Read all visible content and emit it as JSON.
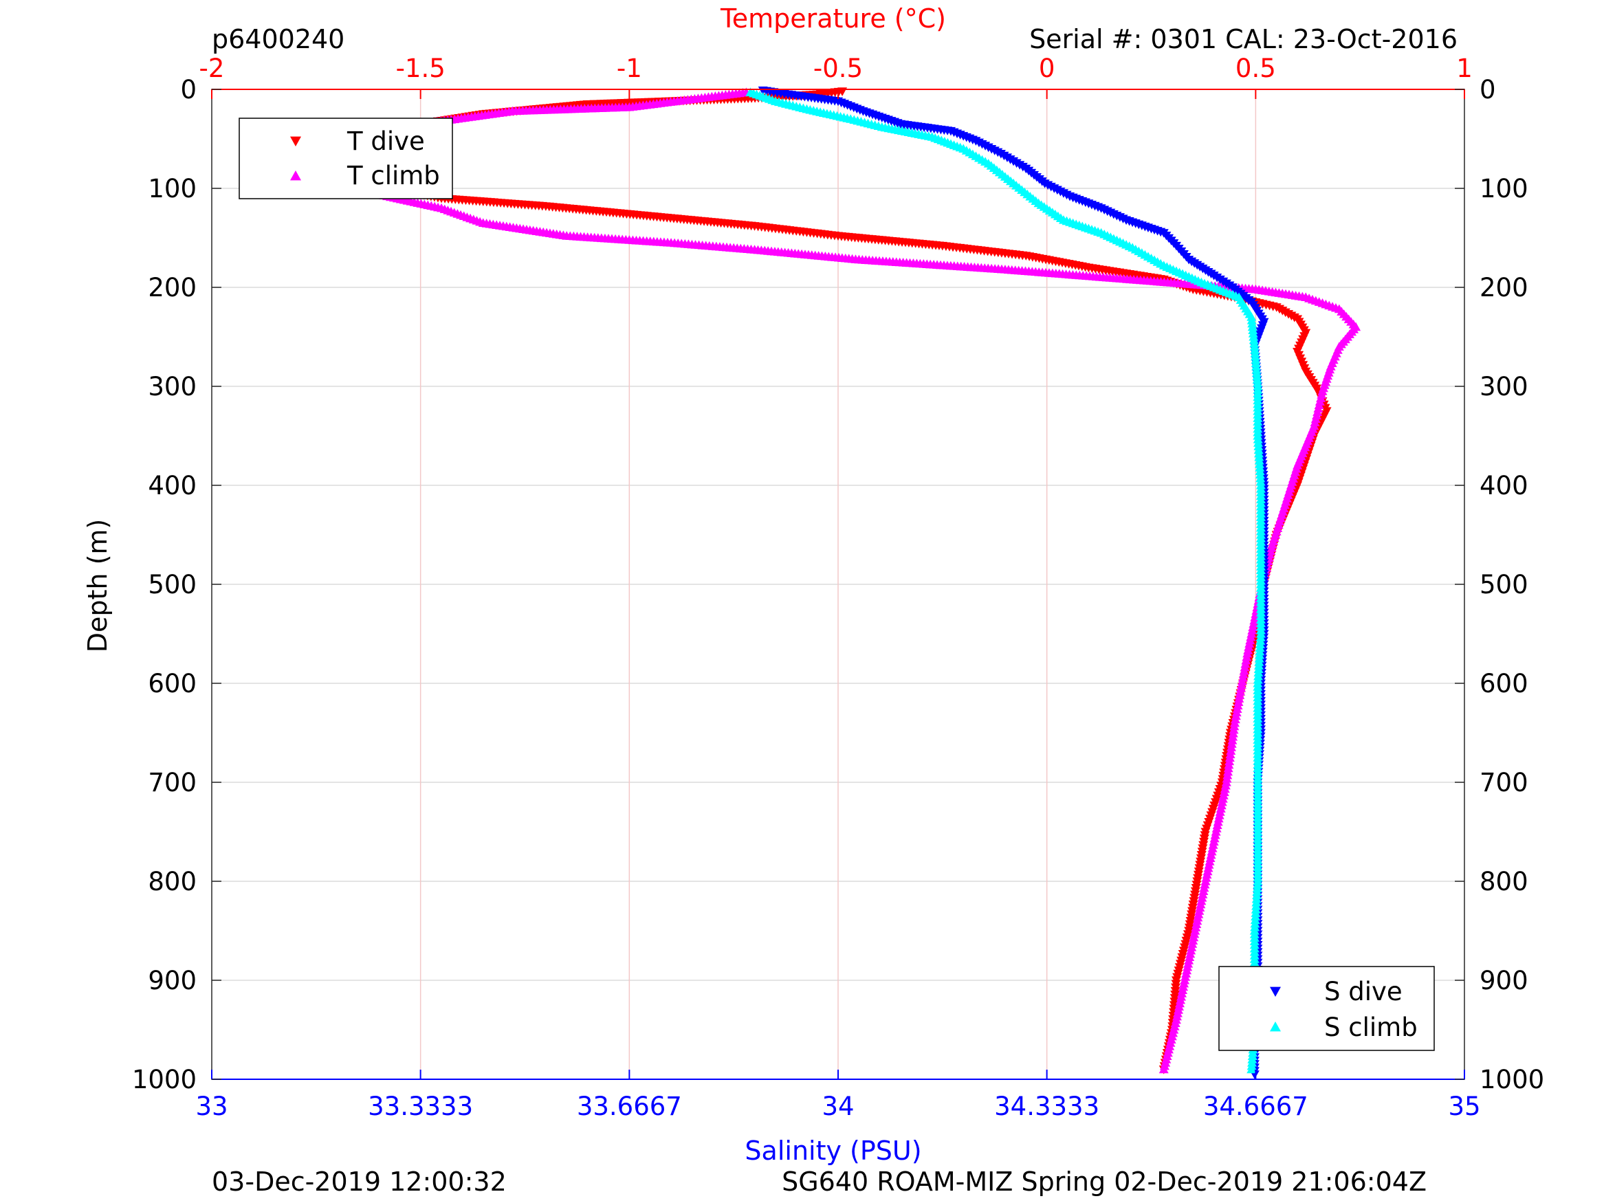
{
  "header": {
    "profile_id": "p6400240",
    "serial": "Serial #: 0301  CAL: 23-Oct-2016"
  },
  "footer": {
    "left": "03-Dec-2019 12:00:32",
    "right": "SG640 ROAM-MIZ Spring 02-Dec-2019 21:06:04Z"
  },
  "colors": {
    "t_dive": "#ff0000",
    "t_climb": "#ff00ff",
    "s_dive": "#0000ff",
    "s_climb": "#00ffff",
    "temperature_axis": "#ff0000",
    "salinity_axis": "#0000ff"
  },
  "chart_data": {
    "type": "scatter",
    "temperature_axis": {
      "label": "Temperature (°C)",
      "position": "top",
      "range": [
        -2,
        1
      ],
      "ticks": [
        -2,
        -1.5,
        -1,
        -0.5,
        0,
        0.5,
        1
      ],
      "tick_labels": [
        "-2",
        "-1.5",
        "-1",
        "-0.5",
        "0",
        "0.5",
        "1"
      ]
    },
    "salinity_axis": {
      "label": "Salinity (PSU)",
      "position": "bottom",
      "range": [
        33,
        35
      ],
      "ticks": [
        33,
        33.3333,
        33.6667,
        34,
        34.3333,
        34.6667,
        35
      ],
      "tick_labels": [
        "33",
        "33.3333",
        "33.6667",
        "34",
        "34.3333",
        "34.6667",
        "35"
      ]
    },
    "depth_axis": {
      "label": "Depth (m)",
      "range": [
        0,
        1000
      ],
      "reversed": true,
      "ticks": [
        0,
        100,
        200,
        300,
        400,
        500,
        600,
        700,
        800,
        900,
        1000
      ],
      "tick_labels": [
        "0",
        "100",
        "200",
        "300",
        "400",
        "500",
        "600",
        "700",
        "800",
        "900",
        "1000"
      ]
    },
    "grid": true,
    "legends": [
      {
        "placement": "top-left",
        "entries": [
          "T dive",
          "T climb"
        ]
      },
      {
        "placement": "bottom-right",
        "entries": [
          "S dive",
          "S climb"
        ]
      }
    ],
    "series": [
      {
        "name": "T dive",
        "axis": "temperature",
        "marker": "triangle-down",
        "points": [
          [
            -0.49,
            2
          ],
          [
            -0.55,
            5
          ],
          [
            -0.65,
            8
          ],
          [
            -1.1,
            15
          ],
          [
            -1.35,
            25
          ],
          [
            -1.5,
            35
          ],
          [
            -1.62,
            48
          ],
          [
            -1.68,
            60
          ],
          [
            -1.7,
            75
          ],
          [
            -1.62,
            90
          ],
          [
            -1.55,
            102
          ],
          [
            -1.45,
            110
          ],
          [
            -1.2,
            118
          ],
          [
            -0.95,
            128
          ],
          [
            -0.7,
            138
          ],
          [
            -0.5,
            148
          ],
          [
            -0.25,
            158
          ],
          [
            -0.05,
            168
          ],
          [
            0.1,
            180
          ],
          [
            0.28,
            192
          ],
          [
            0.35,
            202
          ],
          [
            0.45,
            210
          ],
          [
            0.55,
            220
          ],
          [
            0.6,
            232
          ],
          [
            0.62,
            246
          ],
          [
            0.6,
            265
          ],
          [
            0.62,
            285
          ],
          [
            0.65,
            305
          ],
          [
            0.67,
            325
          ],
          [
            0.64,
            350
          ],
          [
            0.6,
            400
          ],
          [
            0.55,
            450
          ],
          [
            0.52,
            500
          ],
          [
            0.5,
            550
          ],
          [
            0.47,
            600
          ],
          [
            0.44,
            650
          ],
          [
            0.42,
            700
          ],
          [
            0.38,
            750
          ],
          [
            0.36,
            800
          ],
          [
            0.34,
            850
          ],
          [
            0.31,
            900
          ],
          [
            0.3,
            950
          ],
          [
            0.28,
            990
          ]
        ]
      },
      {
        "name": "T climb",
        "axis": "temperature",
        "marker": "triangle-up",
        "points": [
          [
            -0.72,
            3
          ],
          [
            -1.0,
            18
          ],
          [
            -1.28,
            22
          ],
          [
            -1.5,
            35
          ],
          [
            -1.7,
            50
          ],
          [
            -1.78,
            65
          ],
          [
            -1.8,
            80
          ],
          [
            -1.72,
            92
          ],
          [
            -1.58,
            108
          ],
          [
            -1.45,
            120
          ],
          [
            -1.35,
            135
          ],
          [
            -1.15,
            148
          ],
          [
            -0.9,
            155
          ],
          [
            -0.7,
            162
          ],
          [
            -0.45,
            172
          ],
          [
            -0.1,
            182
          ],
          [
            0.2,
            192
          ],
          [
            0.5,
            202
          ],
          [
            0.62,
            210
          ],
          [
            0.7,
            222
          ],
          [
            0.74,
            240
          ],
          [
            0.7,
            260
          ],
          [
            0.68,
            280
          ],
          [
            0.66,
            305
          ],
          [
            0.64,
            340
          ],
          [
            0.6,
            380
          ],
          [
            0.57,
            420
          ],
          [
            0.54,
            460
          ],
          [
            0.51,
            510
          ],
          [
            0.48,
            570
          ],
          [
            0.45,
            640
          ],
          [
            0.43,
            700
          ],
          [
            0.4,
            760
          ],
          [
            0.37,
            820
          ],
          [
            0.34,
            880
          ],
          [
            0.31,
            940
          ],
          [
            0.28,
            990
          ]
        ]
      },
      {
        "name": "S dive",
        "axis": "salinity",
        "marker": "triangle-down",
        "points": [
          [
            33.88,
            1
          ],
          [
            33.92,
            5
          ],
          [
            34.0,
            12
          ],
          [
            34.04,
            22
          ],
          [
            34.1,
            35
          ],
          [
            34.18,
            42
          ],
          [
            34.22,
            52
          ],
          [
            34.26,
            65
          ],
          [
            34.3,
            80
          ],
          [
            34.33,
            95
          ],
          [
            34.37,
            108
          ],
          [
            34.42,
            120
          ],
          [
            34.46,
            132
          ],
          [
            34.52,
            145
          ],
          [
            34.54,
            158
          ],
          [
            34.56,
            172
          ],
          [
            34.6,
            188
          ],
          [
            34.63,
            200
          ],
          [
            34.66,
            215
          ],
          [
            34.68,
            235
          ],
          [
            34.665,
            260
          ],
          [
            34.67,
            300
          ],
          [
            34.675,
            350
          ],
          [
            34.68,
            400
          ],
          [
            34.68,
            450
          ],
          [
            34.68,
            500
          ],
          [
            34.68,
            550
          ],
          [
            34.675,
            600
          ],
          [
            34.675,
            650
          ],
          [
            34.67,
            700
          ],
          [
            34.67,
            750
          ],
          [
            34.67,
            800
          ],
          [
            34.67,
            850
          ],
          [
            34.67,
            900
          ],
          [
            34.665,
            950
          ],
          [
            34.665,
            995
          ]
        ]
      },
      {
        "name": "S climb",
        "axis": "salinity",
        "marker": "triangle-up",
        "points": [
          [
            33.86,
            3
          ],
          [
            33.9,
            12
          ],
          [
            33.95,
            20
          ],
          [
            34.02,
            30
          ],
          [
            34.07,
            38
          ],
          [
            34.15,
            48
          ],
          [
            34.2,
            60
          ],
          [
            34.24,
            75
          ],
          [
            34.28,
            95
          ],
          [
            34.32,
            115
          ],
          [
            34.36,
            132
          ],
          [
            34.42,
            145
          ],
          [
            34.47,
            160
          ],
          [
            34.52,
            178
          ],
          [
            34.58,
            195
          ],
          [
            34.64,
            210
          ],
          [
            34.66,
            230
          ],
          [
            34.665,
            260
          ],
          [
            34.67,
            300
          ],
          [
            34.67,
            350
          ],
          [
            34.675,
            400
          ],
          [
            34.675,
            450
          ],
          [
            34.675,
            500
          ],
          [
            34.675,
            550
          ],
          [
            34.67,
            600
          ],
          [
            34.67,
            650
          ],
          [
            34.67,
            700
          ],
          [
            34.67,
            750
          ],
          [
            34.67,
            800
          ],
          [
            34.665,
            850
          ],
          [
            34.665,
            900
          ],
          [
            34.665,
            950
          ],
          [
            34.66,
            990
          ]
        ]
      }
    ]
  }
}
